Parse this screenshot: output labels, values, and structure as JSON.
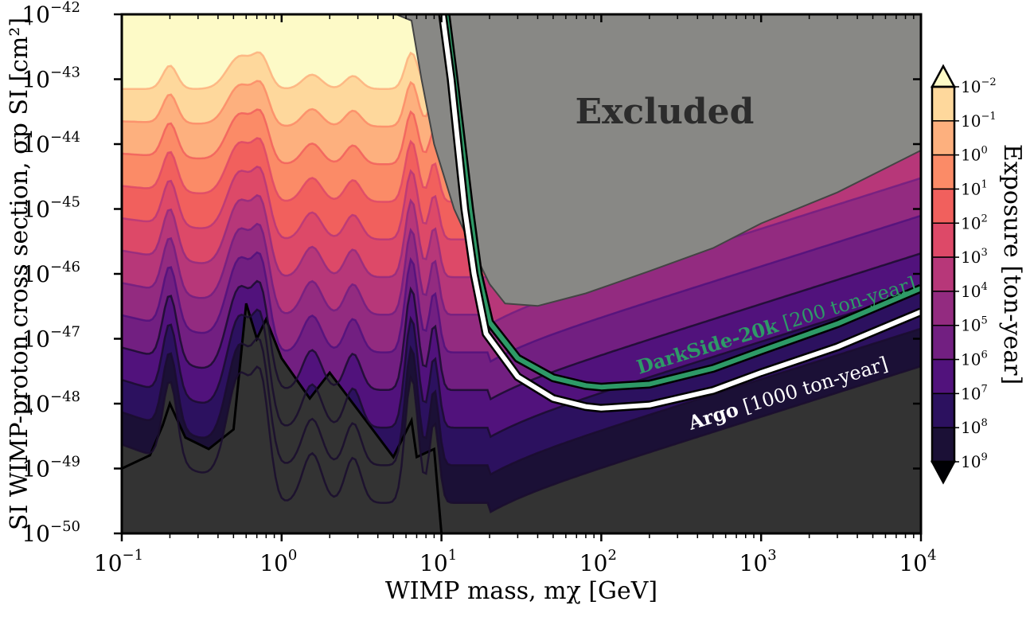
{
  "chart_data": {
    "type": "area",
    "title": "",
    "xlabel": "WIMP mass, mχ [GeV]",
    "ylabel": "SI WIMP-proton cross section, σp SI [cm²]",
    "x_scale": "log",
    "y_scale": "log",
    "xlim": [
      0.1,
      10000
    ],
    "ylim": [
      1e-50,
      1e-42
    ],
    "x_ticks": [
      {
        "value": 0.1,
        "base": "10",
        "exp": "−1"
      },
      {
        "value": 1,
        "base": "10",
        "exp": "0"
      },
      {
        "value": 10,
        "base": "10",
        "exp": "1"
      },
      {
        "value": 100,
        "base": "10",
        "exp": "2"
      },
      {
        "value": 1000,
        "base": "10",
        "exp": "3"
      },
      {
        "value": 10000,
        "base": "10",
        "exp": "4"
      }
    ],
    "y_ticks": [
      {
        "value": 1e-42,
        "base": "10",
        "exp": "−42"
      },
      {
        "value": 1e-43,
        "base": "10",
        "exp": "−43"
      },
      {
        "value": 1e-44,
        "base": "10",
        "exp": "−44"
      },
      {
        "value": 1e-45,
        "base": "10",
        "exp": "−45"
      },
      {
        "value": 1e-46,
        "base": "10",
        "exp": "−46"
      },
      {
        "value": 1e-47,
        "base": "10",
        "exp": "−47"
      },
      {
        "value": 1e-48,
        "base": "10",
        "exp": "−48"
      },
      {
        "value": 1e-49,
        "base": "10",
        "exp": "−49"
      },
      {
        "value": 1e-50,
        "base": "10",
        "exp": "−50"
      }
    ],
    "colorbar": {
      "label": "Exposure [ton-year]",
      "ticks": [
        {
          "value": 0.01,
          "base": "10",
          "exp": "−2"
        },
        {
          "value": 0.1,
          "base": "10",
          "exp": "−1"
        },
        {
          "value": 1,
          "base": "10",
          "exp": "0"
        },
        {
          "value": 10,
          "base": "10",
          "exp": "1"
        },
        {
          "value": 100,
          "base": "10",
          "exp": "2"
        },
        {
          "value": 1000,
          "base": "10",
          "exp": "3"
        },
        {
          "value": 10000,
          "base": "10",
          "exp": "4"
        },
        {
          "value": 100000,
          "base": "10",
          "exp": "5"
        },
        {
          "value": 1000000,
          "base": "10",
          "exp": "6"
        },
        {
          "value": 10000000,
          "base": "10",
          "exp": "7"
        },
        {
          "value": 100000000,
          "base": "10",
          "exp": "8"
        },
        {
          "value": 1000000000,
          "base": "10",
          "exp": "9"
        }
      ],
      "colormap": "magma",
      "extend": "both"
    },
    "contour_levels_ton_year": [
      0.01,
      0.1,
      1,
      10,
      100,
      1000,
      10000,
      100000,
      1000000,
      10000000,
      100000000,
      1000000000
    ],
    "level_colors": [
      "#fdfac7",
      "#fed89c",
      "#fdb07e",
      "#fb8b67",
      "#f1605d",
      "#dd4968",
      "#b73779",
      "#932b80",
      "#721f81",
      "#51127c",
      "#2c115f",
      "#1b1036",
      "#333333"
    ],
    "excluded_region": {
      "label": "Excluded",
      "color": "#888885"
    },
    "limits": [
      {
        "label_bold": "DarkSide-20k",
        "label_rest": " [200 ton-year]",
        "color": "#2e9a67",
        "points": [
          [
            10.5,
            1e-42
          ],
          [
            12,
            1e-43
          ],
          [
            15,
            1e-45
          ],
          [
            17,
            1e-46
          ],
          [
            20,
            1.8e-47
          ],
          [
            30,
            5e-48
          ],
          [
            50,
            2.5e-48
          ],
          [
            80,
            1.9e-48
          ],
          [
            100,
            1.8e-48
          ],
          [
            200,
            2e-48
          ],
          [
            500,
            3.5e-48
          ],
          [
            1000,
            6.5e-48
          ],
          [
            3000,
            1.7e-47
          ],
          [
            10000,
            6e-47
          ]
        ]
      },
      {
        "label_bold": "Argo",
        "label_rest": " [1000 ton-year]",
        "color": "#ffffff",
        "points": [
          [
            10,
            1e-42
          ],
          [
            11.5,
            1e-43
          ],
          [
            14,
            1e-45
          ],
          [
            16,
            1e-46
          ],
          [
            19,
            1.2e-47
          ],
          [
            30,
            2.6e-48
          ],
          [
            50,
            1.2e-48
          ],
          [
            80,
            9e-49
          ],
          [
            100,
            8.5e-49
          ],
          [
            200,
            9.5e-49
          ],
          [
            500,
            1.6e-48
          ],
          [
            1000,
            3e-48
          ],
          [
            3000,
            7.5e-48
          ],
          [
            10000,
            2.6e-47
          ]
        ]
      }
    ],
    "neutrino_floor_boundary": [
      [
        0.1,
        1e-49
      ],
      [
        0.15,
        1.6e-49
      ],
      [
        0.18,
        4.6e-49
      ],
      [
        0.2,
        1e-48
      ],
      [
        0.25,
        3e-49
      ],
      [
        0.35,
        2e-49
      ],
      [
        0.5,
        4e-49
      ],
      [
        0.6,
        3.5e-47
      ],
      [
        0.7,
        1e-47
      ],
      [
        0.8,
        2e-47
      ],
      [
        1,
        5e-48
      ],
      [
        1.5,
        1.2e-48
      ],
      [
        2,
        3e-48
      ],
      [
        3,
        8e-49
      ],
      [
        5,
        1.5e-49
      ],
      [
        6.5,
        5.5e-49
      ],
      [
        7,
        1.5e-49
      ],
      [
        9,
        2e-49
      ],
      [
        10,
        1e-50
      ]
    ]
  }
}
